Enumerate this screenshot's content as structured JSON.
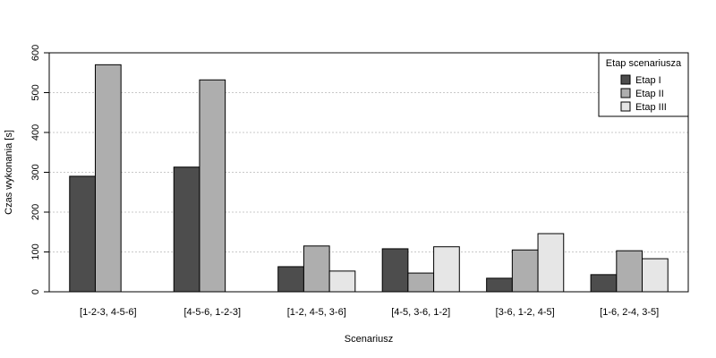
{
  "chart_data": {
    "type": "bar",
    "title": "",
    "xlabel": "Scenariusz",
    "ylabel": "Czas wykonania [s]",
    "ylim": [
      0,
      600
    ],
    "yticks": [
      0,
      100,
      200,
      300,
      400,
      500,
      600
    ],
    "grid": "horizontal dotted",
    "categories": [
      "[1-2-3, 4-5-6]",
      "[4-5-6, 1-2-3]",
      "[1-2, 4-5, 3-6]",
      "[4-5, 3-6, 1-2]",
      "[3-6, 1-2, 4-5]",
      "[1-6, 2-4, 3-5]"
    ],
    "series": [
      {
        "name": "Etap I",
        "color": "#4d4d4d",
        "values": [
          290,
          313,
          63,
          108,
          34,
          43
        ]
      },
      {
        "name": "Etap II",
        "color": "#aeaeae",
        "values": [
          570,
          532,
          115,
          47,
          105,
          103
        ]
      },
      {
        "name": "Etap III",
        "color": "#e6e6e6",
        "values": [
          null,
          null,
          52,
          113,
          146,
          83
        ]
      }
    ],
    "legend": {
      "title": "Etap scenariusza",
      "position": "top-right"
    }
  }
}
